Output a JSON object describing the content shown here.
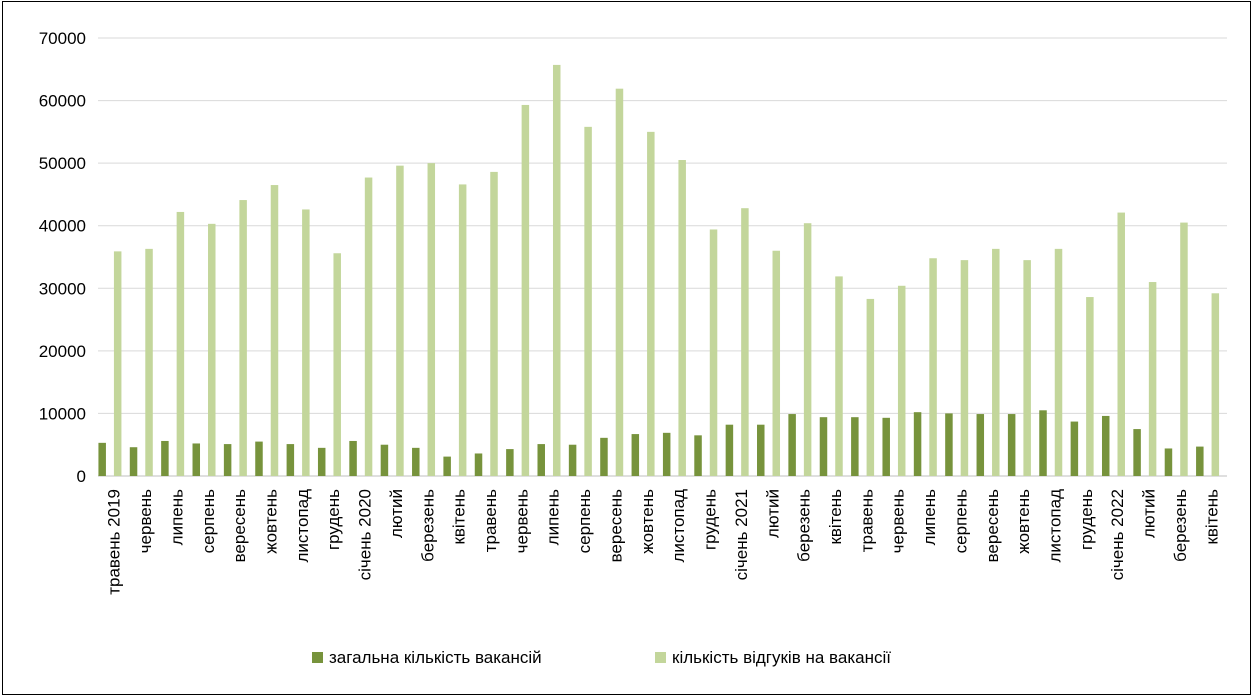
{
  "chart_data": {
    "type": "bar",
    "title": "",
    "xlabel": "",
    "ylabel": "",
    "ylim": [
      0,
      70000
    ],
    "yticks": [
      0,
      10000,
      20000,
      30000,
      40000,
      50000,
      60000,
      70000
    ],
    "grid": true,
    "legend_position": "bottom",
    "categories": [
      "травень 2019",
      "червень",
      "липень",
      "серпень",
      "вересень",
      "жовтень",
      "листопад",
      "грудень",
      "січень 2020",
      "лютий",
      "березень",
      "квітень",
      "травень",
      "червень",
      "липень",
      "серпень",
      "вересень",
      "жовтень",
      "листопад",
      "грудень",
      "січень 2021",
      "лютий",
      "березень",
      "квітень",
      "травень",
      "червень",
      "липень",
      "серпень",
      "вересень",
      "жовтень",
      "листопад",
      "грудень",
      "січень 2022",
      "лютий",
      "березень",
      "квітень"
    ],
    "series": [
      {
        "name": "загальна кількість вакансій",
        "color": "#77933c",
        "values": [
          5300,
          4600,
          5600,
          5200,
          5100,
          5500,
          5100,
          4500,
          5600,
          5000,
          4500,
          3100,
          3600,
          4300,
          5100,
          5000,
          6100,
          6700,
          6900,
          6500,
          8200,
          8200,
          9900,
          9400,
          9400,
          9300,
          10200,
          10000,
          9900,
          9900,
          10500,
          8700,
          9600,
          7500,
          4400,
          4700
        ]
      },
      {
        "name": "кількість відгуків на вакансії",
        "color": "#c3d69b",
        "values": [
          35900,
          36300,
          42200,
          40300,
          44100,
          46500,
          42600,
          35600,
          47700,
          49600,
          50000,
          46600,
          48600,
          59300,
          65700,
          55800,
          61900,
          55000,
          50500,
          39400,
          42800,
          36000,
          40400,
          31900,
          28300,
          30400,
          34800,
          34500,
          36300,
          34500,
          36300,
          28600,
          42100,
          31000,
          40500,
          29200
        ]
      }
    ]
  }
}
